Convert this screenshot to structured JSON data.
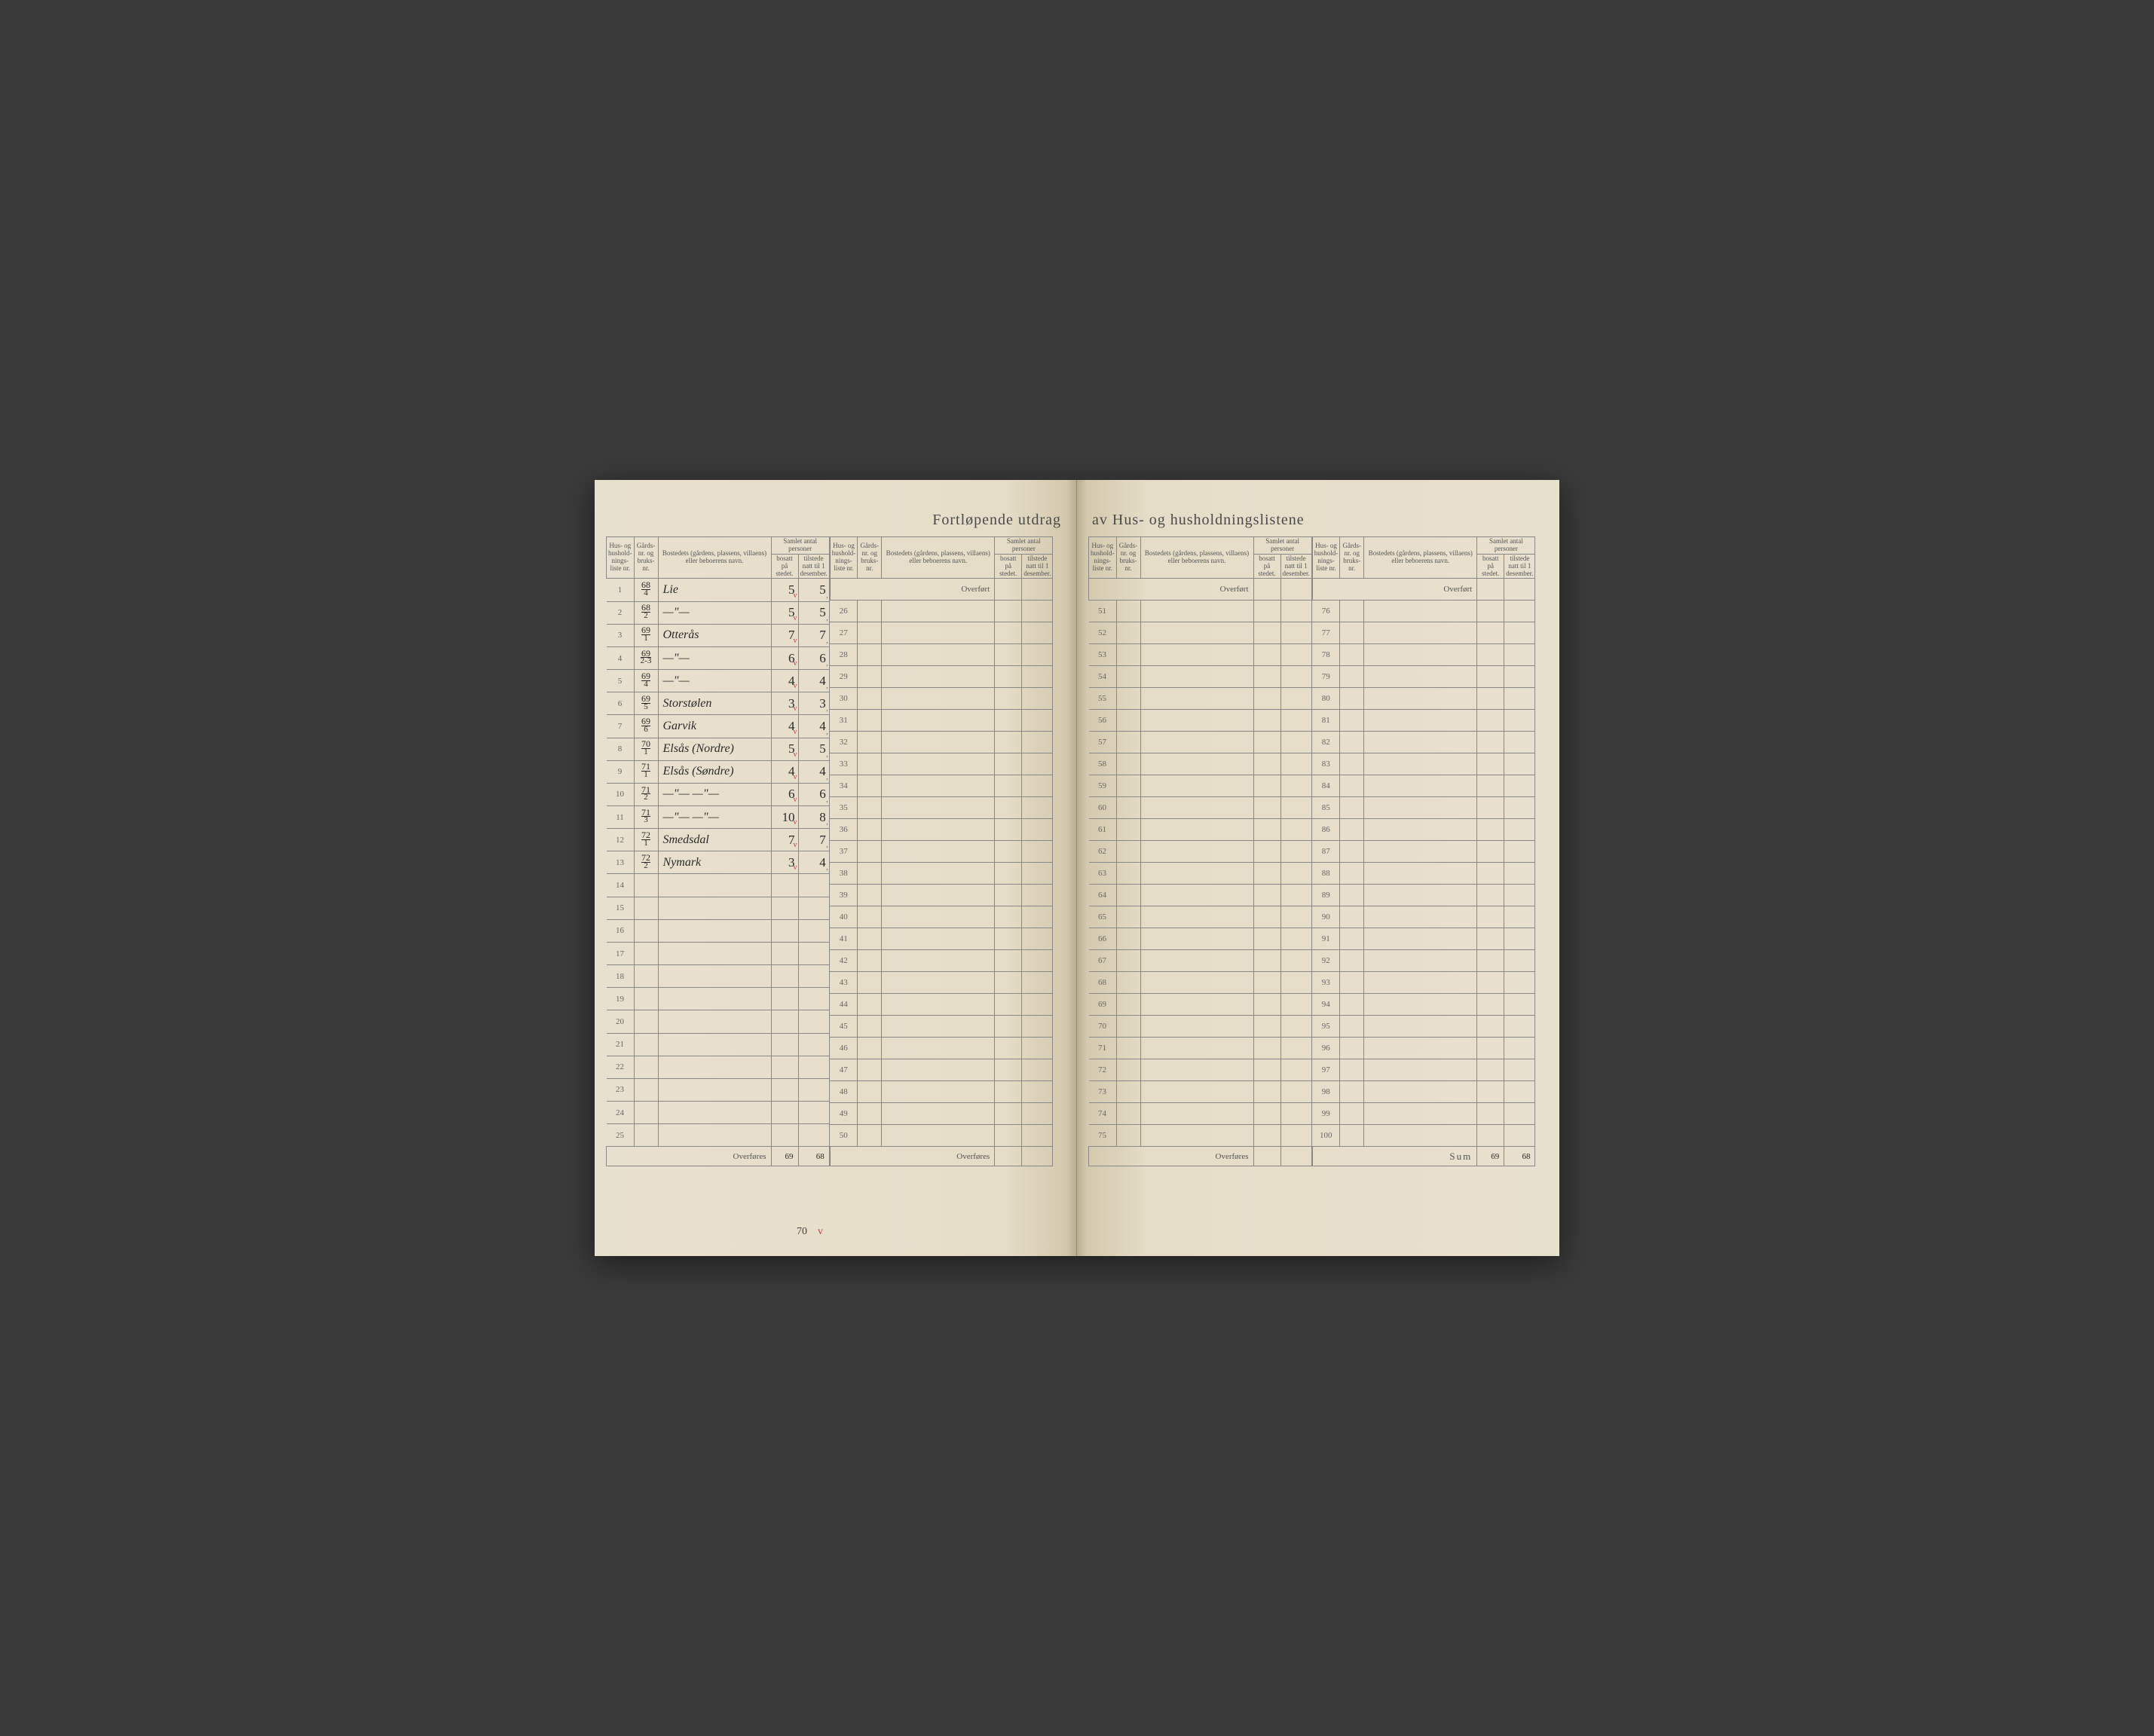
{
  "title_left": "Fortløpende utdrag",
  "title_right": "av Hus- og husholdningslistene",
  "headers": {
    "liste": "Hus- og hushold-nings-liste nr.",
    "gard": "Gårds-nr. og bruks-nr.",
    "bosted": "Bostedets (gårdens, plassens, villaens) eller beboerens navn.",
    "samlet": "Samlet antal personer",
    "bosatt": "bosatt på stedet.",
    "tilstede": "tilstede natt til 1 desember."
  },
  "overfort": "Overført",
  "overfores": "Overføres",
  "sum_label": "Sum",
  "rows_left1": [
    {
      "n": "1",
      "g_n": "68",
      "g_d": "4",
      "name": "Lie",
      "b": "5",
      "t": "5"
    },
    {
      "n": "2",
      "g_n": "68",
      "g_d": "2",
      "name": "—\"—",
      "b": "5",
      "t": "5"
    },
    {
      "n": "3",
      "g_n": "69",
      "g_d": "1",
      "name": "Otterås",
      "b": "7",
      "t": "7"
    },
    {
      "n": "4",
      "g_n": "69",
      "g_d": "2-3",
      "name": "—\"—",
      "b": "6",
      "t": "6"
    },
    {
      "n": "5",
      "g_n": "69",
      "g_d": "4",
      "name": "—\"—",
      "b": "4",
      "t": "4"
    },
    {
      "n": "6",
      "g_n": "69",
      "g_d": "5",
      "name": "Storstølen",
      "b": "3",
      "t": "3"
    },
    {
      "n": "7",
      "g_n": "69",
      "g_d": "6",
      "name": "Garvik",
      "b": "4",
      "t": "4"
    },
    {
      "n": "8",
      "g_n": "70",
      "g_d": "1",
      "name": "Elsås (Nordre)",
      "b": "5",
      "t": "5"
    },
    {
      "n": "9",
      "g_n": "71",
      "g_d": "1",
      "name": "Elsås (Søndre)",
      "b": "4",
      "t": "4"
    },
    {
      "n": "10",
      "g_n": "71",
      "g_d": "2",
      "name": "—\"— —\"—",
      "b": "6",
      "t": "6"
    },
    {
      "n": "11",
      "g_n": "71",
      "g_d": "3",
      "name": "—\"— —\"—",
      "b": "10",
      "t": "8"
    },
    {
      "n": "12",
      "g_n": "72",
      "g_d": "1",
      "name": "Smedsdal",
      "b": "7",
      "t": "7"
    },
    {
      "n": "13",
      "g_n": "72",
      "g_d": "2",
      "name": "Nymark",
      "b": "3",
      "t": "4"
    },
    {
      "n": "14"
    },
    {
      "n": "15"
    },
    {
      "n": "16"
    },
    {
      "n": "17"
    },
    {
      "n": "18"
    },
    {
      "n": "19"
    },
    {
      "n": "20"
    },
    {
      "n": "21"
    },
    {
      "n": "22"
    },
    {
      "n": "23"
    },
    {
      "n": "24"
    },
    {
      "n": "25"
    }
  ],
  "rows_left2_start": 26,
  "rows_right1_start": 51,
  "rows_right2_start": 76,
  "overfores_b": "69",
  "overfores_t": "68",
  "extra_b": "70",
  "extra_tick": "v",
  "sum_b": "69",
  "sum_t": "68",
  "colors": {
    "paper": "#e8e0ce",
    "ink": "#2a2a2a",
    "printed": "#555",
    "rule": "#888",
    "red": "#c04040"
  }
}
